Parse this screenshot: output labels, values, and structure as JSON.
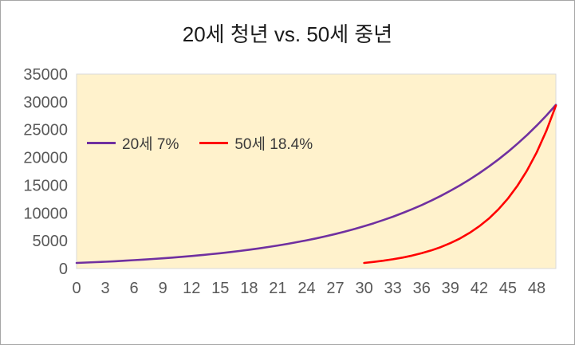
{
  "chart_data": {
    "type": "line",
    "title": "20세 청년 vs. 50세 중년",
    "xlabel": "",
    "ylabel": "",
    "xlim": [
      0,
      50
    ],
    "ylim": [
      0,
      35000
    ],
    "x_tick_labels": [
      0,
      3,
      6,
      9,
      12,
      15,
      18,
      21,
      24,
      27,
      30,
      33,
      36,
      39,
      42,
      45,
      48
    ],
    "y_tick_labels": [
      0,
      5000,
      10000,
      15000,
      20000,
      25000,
      30000,
      35000
    ],
    "grid": false,
    "legend_position": "inside-top-left",
    "plot_background": "#FFF2CC",
    "plot_border": "#D9D9D9",
    "axis_text_color": "#595959",
    "series": [
      {
        "name": "20세 7%",
        "color": "#7030A0",
        "x_range": [
          0,
          50
        ],
        "values": [
          1000,
          1070,
          1145,
          1225,
          1311,
          1403,
          1501,
          1606,
          1718,
          1838,
          1967,
          2105,
          2252,
          2410,
          2579,
          2759,
          2952,
          3159,
          3380,
          3617,
          3870,
          4141,
          4430,
          4741,
          5072,
          5427,
          5807,
          6214,
          6649,
          7114,
          7612,
          8145,
          8715,
          9325,
          9978,
          10677,
          11424,
          12224,
          13079,
          13995,
          14974,
          16023,
          17144,
          18344,
          19628,
          21002,
          22473,
          24046,
          25729,
          27530,
          29457
        ]
      },
      {
        "name": "50세 18.4%",
        "color": "#FF0000",
        "x_range": [
          30,
          50
        ],
        "values": [
          1000,
          1184,
          1402,
          1660,
          1965,
          2327,
          2755,
          3262,
          3862,
          4573,
          5414,
          6410,
          7590,
          8986,
          10640,
          12597,
          14915,
          17660,
          20909,
          24756,
          29311
        ]
      }
    ]
  }
}
